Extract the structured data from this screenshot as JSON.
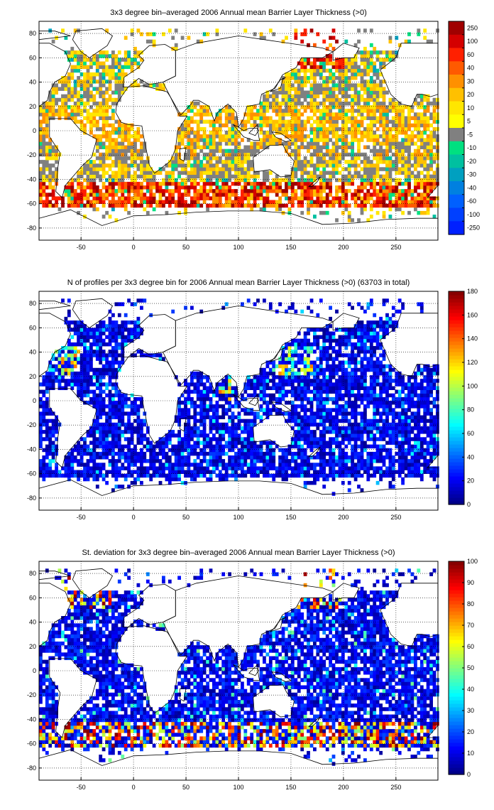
{
  "chart_data": [
    {
      "type": "heatmap",
      "title": "3x3 degree bin–averaged 2006 Annual mean Barrier Layer Thickness (>0)",
      "xlim": [
        -90,
        290
      ],
      "ylim": [
        -90,
        90
      ],
      "xticks": [
        -50,
        0,
        50,
        100,
        150,
        200,
        250
      ],
      "yticks": [
        80,
        60,
        40,
        20,
        0,
        -20,
        -40,
        -60,
        -80
      ],
      "grid": true,
      "colorbar": {
        "type": "discrete",
        "labels": [
          "250",
          "100",
          "60",
          "40",
          "30",
          "20",
          "10",
          "5",
          "-5",
          "-10",
          "-20",
          "-30",
          "-40",
          "-60",
          "-100",
          "-250"
        ],
        "colors": [
          "#a00000",
          "#d40000",
          "#ff2000",
          "#ff5a00",
          "#ff9000",
          "#ffc000",
          "#ffe600",
          "#ffff00",
          "#808080",
          "#00e080",
          "#00c0a0",
          "#00a0c0",
          "#0080e0",
          "#0060ff",
          "#0040ff",
          "#0020ff"
        ]
      },
      "value_summary": "Mostly 5–30 m (yellow/orange) in tropics and subtropics; gray (≤5) over large subtropical gyres; red 40–250 m band near 45–60°S and in the NW Pacific around 60°N; scattered cyan/green (-5 to -20) patches."
    },
    {
      "type": "heatmap",
      "title": "N of profiles per 3x3 degree bin for 2006 Annual mean Barrier Layer Thickness (>0) (63703 in total)",
      "xlim": [
        -90,
        290
      ],
      "ylim": [
        -90,
        90
      ],
      "xticks": [
        -50,
        0,
        50,
        100,
        150,
        200,
        250
      ],
      "yticks": [
        80,
        60,
        40,
        20,
        0,
        -20,
        -40,
        -60,
        -80
      ],
      "grid": true,
      "colorbar": {
        "type": "continuous",
        "min": 0,
        "max": 180,
        "ticks": [
          0,
          20,
          40,
          60,
          80,
          100,
          120,
          140,
          160,
          180
        ]
      },
      "total_profiles": 63703,
      "value_summary": "Most bins 0–30 profiles (dark blue); higher counts (60–140) scattered near Japan, the NW Atlantic, the Bay of Bengal and the Gulf of Mexico."
    },
    {
      "type": "heatmap",
      "title": "St. deviation for 3x3 degree bin–averaged 2006 Annual mean Barrier Layer Thickness (>0)",
      "xlim": [
        -90,
        290
      ],
      "ylim": [
        -90,
        90
      ],
      "xticks": [
        -50,
        0,
        50,
        100,
        150,
        200,
        250
      ],
      "yticks": [
        80,
        60,
        40,
        20,
        0,
        -20,
        -40,
        -60,
        -80
      ],
      "grid": true,
      "colorbar": {
        "type": "continuous",
        "min": 0,
        "max": 100,
        "ticks": [
          0,
          10,
          20,
          30,
          40,
          50,
          60,
          70,
          80,
          90,
          100
        ]
      },
      "value_summary": "Mostly 0–20 (blue); high values (60–100, red) along the 45–60°S band and in the North Pacific near 60°N and the NW Atlantic."
    }
  ]
}
